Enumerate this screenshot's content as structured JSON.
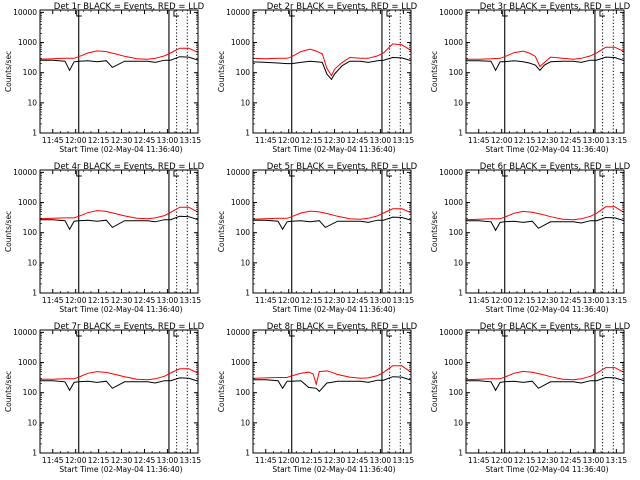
{
  "figure": {
    "background": "#ffffff",
    "series_colors": {
      "events": "#000000",
      "lld": "#ff0000"
    },
    "x_ticks": [
      "11:45",
      "12:00",
      "12:15",
      "12:30",
      "12:45",
      "13:00",
      "13:15"
    ],
    "x_tick_minutes": [
      705,
      720,
      735,
      750,
      765,
      780,
      795
    ],
    "y_ticks": [
      "1",
      "10",
      "100",
      "1000",
      "10000"
    ],
    "y_tick_values": [
      1,
      10,
      100,
      1000,
      10000
    ],
    "x_axis_label": "Start Time (02-May-04 11:36:40)",
    "y_axis_label": "Counts/sec"
  },
  "chart_data": [
    {
      "type": "line",
      "title": "Det 1r BLACK = Events, RED = LLD",
      "xlabel": "Start Time (02-May-04 11:36:40)",
      "ylabel": "Counts/sec",
      "x_unit": "minutes of day",
      "xlim": [
        696.67,
        800
      ],
      "ylim": [
        1,
        12000
      ],
      "y_scale": "log",
      "marker_lines": {
        "solid": [
          722,
          781
        ],
        "dotted": [
          786,
          793
        ]
      },
      "series": [
        {
          "color": "#000000",
          "x": [
            697,
            705,
            713,
            716,
            719,
            722,
            728,
            734,
            740,
            744,
            752,
            760,
            767,
            772,
            778,
            782,
            788,
            794,
            800
          ],
          "values": [
            260,
            260,
            240,
            120,
            230,
            240,
            250,
            230,
            250,
            150,
            240,
            240,
            240,
            220,
            260,
            260,
            340,
            330,
            260
          ]
        },
        {
          "color": "#ff0000",
          "x": [
            697,
            705,
            713,
            719,
            722,
            728,
            734,
            740,
            746,
            752,
            760,
            767,
            772,
            778,
            782,
            788,
            794,
            800
          ],
          "values": [
            280,
            290,
            300,
            300,
            340,
            450,
            530,
            500,
            420,
            350,
            290,
            280,
            300,
            360,
            450,
            650,
            650,
            470
          ]
        }
      ]
    },
    {
      "type": "line",
      "title": "Det 2r BLACK = Events, RED = LLD",
      "xlabel": "Start Time (02-May-04 11:36:40)",
      "ylabel": "Counts/sec",
      "x_unit": "minutes of day",
      "xlim": [
        696.67,
        800
      ],
      "ylim": [
        1,
        12000
      ],
      "y_scale": "log",
      "marker_lines": {
        "solid": [
          722,
          781
        ],
        "dotted": [
          786,
          793
        ]
      },
      "series": [
        {
          "color": "#000000",
          "x": [
            697,
            705,
            713,
            719,
            722,
            728,
            734,
            738,
            742,
            745,
            748,
            750,
            755,
            760,
            767,
            772,
            778,
            782,
            788,
            794,
            800
          ],
          "values": [
            230,
            220,
            210,
            200,
            200,
            220,
            240,
            230,
            220,
            90,
            60,
            90,
            170,
            240,
            240,
            220,
            250,
            260,
            320,
            310,
            250
          ]
        },
        {
          "color": "#ff0000",
          "x": [
            697,
            705,
            713,
            719,
            722,
            728,
            734,
            738,
            742,
            745,
            748,
            750,
            755,
            760,
            767,
            772,
            778,
            782,
            788,
            794,
            800
          ],
          "values": [
            300,
            290,
            300,
            300,
            340,
            500,
            600,
            520,
            420,
            140,
            80,
            130,
            220,
            320,
            300,
            300,
            360,
            450,
            900,
            850,
            550
          ]
        }
      ]
    },
    {
      "type": "line",
      "title": "Det 3r BLACK = Events, RED = LLD",
      "xlabel": "Start Time (02-May-04 11:36:40)",
      "ylabel": "Counts/sec",
      "x_unit": "minutes of day",
      "xlim": [
        696.67,
        800
      ],
      "ylim": [
        1,
        12000
      ],
      "y_scale": "log",
      "marker_lines": {
        "solid": [
          722,
          781
        ],
        "dotted": [
          786,
          793
        ]
      },
      "series": [
        {
          "color": "#000000",
          "x": [
            697,
            705,
            713,
            716,
            719,
            722,
            728,
            734,
            738,
            742,
            745,
            748,
            752,
            760,
            767,
            772,
            778,
            782,
            788,
            794,
            800
          ],
          "values": [
            250,
            250,
            240,
            120,
            230,
            230,
            250,
            230,
            210,
            180,
            120,
            180,
            230,
            240,
            240,
            220,
            260,
            260,
            330,
            320,
            250
          ]
        },
        {
          "color": "#ff0000",
          "x": [
            697,
            705,
            713,
            719,
            722,
            728,
            734,
            738,
            742,
            745,
            748,
            752,
            760,
            767,
            772,
            778,
            782,
            788,
            794,
            800
          ],
          "values": [
            280,
            280,
            290,
            300,
            340,
            460,
            520,
            450,
            350,
            160,
            220,
            330,
            300,
            280,
            300,
            360,
            450,
            700,
            700,
            500
          ]
        }
      ]
    },
    {
      "type": "line",
      "title": "Det 4r BLACK = Events, RED = LLD",
      "xlabel": "Start Time (02-May-04 11:36:40)",
      "ylabel": "Counts/sec",
      "x_unit": "minutes of day",
      "xlim": [
        696.67,
        800
      ],
      "ylim": [
        1,
        12000
      ],
      "y_scale": "log",
      "marker_lines": {
        "solid": [
          722,
          781
        ],
        "dotted": [
          786,
          793
        ]
      },
      "series": [
        {
          "color": "#000000",
          "x": [
            697,
            705,
            713,
            716,
            719,
            722,
            728,
            734,
            740,
            744,
            752,
            760,
            767,
            772,
            778,
            782,
            788,
            794,
            800
          ],
          "values": [
            270,
            270,
            250,
            130,
            240,
            250,
            260,
            240,
            260,
            150,
            250,
            250,
            250,
            230,
            270,
            270,
            350,
            340,
            270
          ]
        },
        {
          "color": "#ff0000",
          "x": [
            697,
            705,
            713,
            719,
            722,
            728,
            734,
            740,
            746,
            752,
            760,
            767,
            772,
            778,
            782,
            788,
            794,
            800
          ],
          "values": [
            290,
            300,
            310,
            310,
            350,
            460,
            540,
            510,
            430,
            360,
            300,
            290,
            310,
            370,
            470,
            700,
            700,
            480
          ]
        }
      ]
    },
    {
      "type": "line",
      "title": "Det 5r BLACK = Events, RED = LLD",
      "xlabel": "Start Time (02-May-04 11:36:40)",
      "ylabel": "Counts/sec",
      "x_unit": "minutes of day",
      "xlim": [
        696.67,
        800
      ],
      "ylim": [
        1,
        12000
      ],
      "y_scale": "log",
      "marker_lines": {
        "solid": [
          722,
          781
        ],
        "dotted": [
          786,
          793
        ]
      },
      "series": [
        {
          "color": "#000000",
          "x": [
            697,
            705,
            713,
            716,
            719,
            722,
            728,
            734,
            740,
            744,
            752,
            760,
            767,
            772,
            778,
            782,
            788,
            794,
            800
          ],
          "values": [
            260,
            260,
            240,
            130,
            230,
            240,
            250,
            230,
            250,
            150,
            240,
            240,
            240,
            220,
            260,
            260,
            330,
            320,
            260
          ]
        },
        {
          "color": "#ff0000",
          "x": [
            697,
            705,
            713,
            719,
            722,
            728,
            734,
            740,
            746,
            752,
            760,
            767,
            772,
            778,
            782,
            788,
            794,
            800
          ],
          "values": [
            280,
            290,
            300,
            300,
            340,
            450,
            520,
            490,
            420,
            350,
            290,
            280,
            300,
            360,
            450,
            620,
            620,
            460
          ]
        }
      ]
    },
    {
      "type": "line",
      "title": "Det 6r BLACK = Events, RED = LLD",
      "xlabel": "Start Time (02-May-04 11:36:40)",
      "ylabel": "Counts/sec",
      "x_unit": "minutes of day",
      "xlim": [
        696.67,
        800
      ],
      "ylim": [
        1,
        12000
      ],
      "y_scale": "log",
      "marker_lines": {
        "solid": [
          722,
          781
        ],
        "dotted": [
          786,
          793
        ]
      },
      "series": [
        {
          "color": "#000000",
          "x": [
            697,
            705,
            713,
            716,
            719,
            722,
            728,
            734,
            740,
            744,
            752,
            760,
            767,
            772,
            778,
            782,
            788,
            794,
            800
          ],
          "values": [
            250,
            250,
            230,
            120,
            220,
            230,
            240,
            220,
            240,
            140,
            230,
            230,
            230,
            210,
            250,
            250,
            320,
            310,
            250
          ]
        },
        {
          "color": "#ff0000",
          "x": [
            697,
            705,
            713,
            719,
            722,
            728,
            734,
            740,
            746,
            752,
            760,
            767,
            772,
            778,
            782,
            788,
            794,
            800
          ],
          "values": [
            270,
            280,
            290,
            290,
            330,
            440,
            510,
            480,
            410,
            340,
            280,
            270,
            290,
            350,
            440,
            720,
            720,
            470
          ]
        }
      ]
    },
    {
      "type": "line",
      "title": "Det 7r BLACK = Events, RED = LLD",
      "xlabel": "Start Time (02-May-04 11:36:40)",
      "ylabel": "Counts/sec",
      "x_unit": "minutes of day",
      "xlim": [
        696.67,
        800
      ],
      "ylim": [
        1,
        12000
      ],
      "y_scale": "log",
      "marker_lines": {
        "solid": [
          722,
          781
        ],
        "dotted": [
          786,
          793
        ]
      },
      "series": [
        {
          "color": "#000000",
          "x": [
            697,
            705,
            713,
            716,
            719,
            722,
            728,
            734,
            740,
            744,
            752,
            760,
            767,
            772,
            778,
            782,
            788,
            794,
            800
          ],
          "values": [
            250,
            250,
            230,
            120,
            220,
            230,
            240,
            220,
            240,
            140,
            230,
            230,
            230,
            210,
            250,
            250,
            310,
            300,
            240
          ]
        },
        {
          "color": "#ff0000",
          "x": [
            697,
            705,
            713,
            719,
            722,
            728,
            734,
            740,
            746,
            752,
            760,
            767,
            772,
            778,
            782,
            788,
            794,
            800
          ],
          "values": [
            280,
            280,
            290,
            290,
            330,
            440,
            500,
            470,
            400,
            340,
            280,
            270,
            290,
            350,
            450,
            620,
            620,
            450
          ]
        }
      ]
    },
    {
      "type": "line",
      "title": "Det 8r BLACK = Events, RED = LLD",
      "xlabel": "Start Time (02-May-04 11:36:40)",
      "ylabel": "Counts/sec",
      "x_unit": "minutes of day",
      "xlim": [
        696.67,
        800
      ],
      "ylim": [
        1,
        12000
      ],
      "y_scale": "log",
      "marker_lines": {
        "solid": [
          722,
          781
        ],
        "dotted": [
          786,
          793
        ]
      },
      "series": [
        {
          "color": "#000000",
          "x": [
            697,
            705,
            713,
            716,
            719,
            722,
            728,
            733,
            738,
            740,
            745,
            748,
            752,
            760,
            767,
            772,
            778,
            782,
            788,
            794,
            800
          ],
          "values": [
            270,
            270,
            250,
            140,
            240,
            240,
            250,
            150,
            140,
            110,
            210,
            220,
            240,
            240,
            240,
            220,
            260,
            260,
            340,
            330,
            260
          ]
        },
        {
          "color": "#ff0000",
          "x": [
            697,
            705,
            713,
            719,
            722,
            728,
            733,
            736,
            738,
            740,
            745,
            748,
            752,
            760,
            767,
            772,
            778,
            782,
            788,
            794,
            800
          ],
          "values": [
            300,
            310,
            320,
            320,
            360,
            440,
            480,
            420,
            190,
            500,
            530,
            480,
            400,
            330,
            300,
            310,
            370,
            470,
            780,
            780,
            480
          ]
        }
      ]
    },
    {
      "type": "line",
      "title": "Det 9r BLACK = Events, RED = LLD",
      "xlabel": "Start Time (02-May-04 11:36:40)",
      "ylabel": "Counts/sec",
      "x_unit": "minutes of day",
      "xlim": [
        696.67,
        800
      ],
      "ylim": [
        1,
        12000
      ],
      "y_scale": "log",
      "marker_lines": {
        "solid": [
          722,
          781
        ],
        "dotted": [
          786,
          793
        ]
      },
      "series": [
        {
          "color": "#000000",
          "x": [
            697,
            705,
            713,
            716,
            719,
            722,
            728,
            734,
            740,
            744,
            752,
            760,
            767,
            772,
            778,
            782,
            788,
            794,
            800
          ],
          "values": [
            250,
            250,
            230,
            120,
            220,
            230,
            240,
            220,
            240,
            140,
            230,
            230,
            230,
            210,
            250,
            250,
            320,
            310,
            250
          ]
        },
        {
          "color": "#ff0000",
          "x": [
            697,
            705,
            713,
            719,
            722,
            728,
            734,
            740,
            746,
            752,
            760,
            767,
            772,
            778,
            782,
            788,
            794,
            800
          ],
          "values": [
            270,
            280,
            290,
            290,
            330,
            440,
            510,
            480,
            410,
            340,
            280,
            270,
            290,
            350,
            440,
            680,
            680,
            470
          ]
        }
      ]
    }
  ]
}
